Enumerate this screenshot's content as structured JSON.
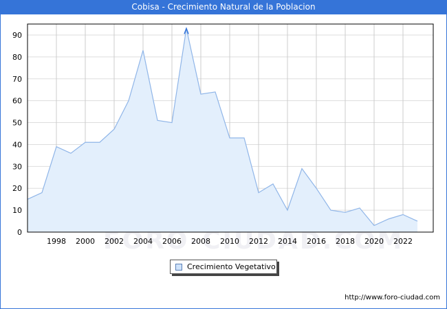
{
  "header": {
    "title": "Cobisa - Crecimiento Natural de la Poblacion"
  },
  "legend": {
    "label": "Crecimiento Vegetativo"
  },
  "footer": {
    "url": "http://www.foro-ciudad.com"
  },
  "watermark": "FORO-CIUDAD.COM",
  "colors": {
    "title_bg": "#3574d8",
    "line": "#8fb5e8",
    "fill": "#e3effc",
    "peak_marker": "#3574d8"
  },
  "chart_data": {
    "type": "area",
    "title": "Cobisa - Crecimiento Natural de la Poblacion",
    "xlabel": "",
    "ylabel": "",
    "ylim": [
      0,
      95
    ],
    "xlim": [
      1996,
      2024
    ],
    "yticks": [
      0,
      10,
      20,
      30,
      40,
      50,
      60,
      70,
      80,
      90
    ],
    "xticks": [
      1998,
      2000,
      2002,
      2004,
      2006,
      2008,
      2010,
      2012,
      2014,
      2016,
      2018,
      2020,
      2022
    ],
    "grid": true,
    "legend_position": "bottom-center",
    "x": [
      1996,
      1997,
      1998,
      1999,
      2000,
      2001,
      2002,
      2003,
      2004,
      2005,
      2006,
      2007,
      2008,
      2009,
      2010,
      2011,
      2012,
      2013,
      2014,
      2015,
      2016,
      2017,
      2018,
      2019,
      2020,
      2021,
      2022,
      2023
    ],
    "series": [
      {
        "name": "Crecimiento Vegetativo",
        "values": [
          15,
          18,
          39,
          36,
          41,
          41,
          47,
          60,
          83,
          51,
          50,
          93,
          63,
          64,
          43,
          43,
          18,
          22,
          10,
          29,
          20,
          10,
          9,
          11,
          3,
          6,
          8,
          5
        ]
      }
    ]
  }
}
